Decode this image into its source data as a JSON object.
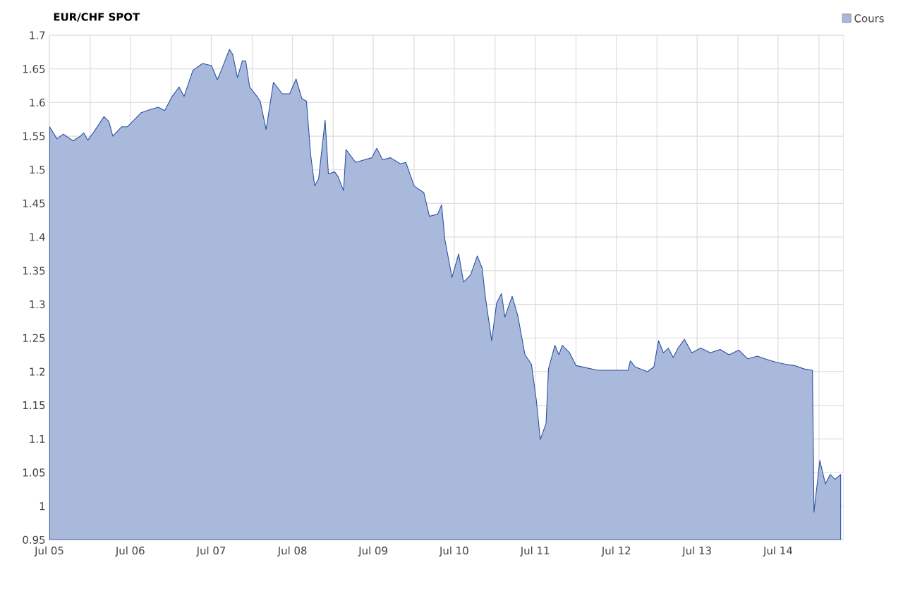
{
  "chart_data": {
    "type": "area",
    "title": "EUR/CHF SPOT",
    "x": [
      "2005-07-02",
      "2005-08-04",
      "2005-09-02",
      "2005-10-16",
      "2005-11-18",
      "2005-12-03",
      "2005-12-21",
      "2006-01-19",
      "2006-03-04",
      "2006-03-26",
      "2006-04-13",
      "2006-05-23",
      "2006-06-18",
      "2006-08-19",
      "2006-10-02",
      "2006-11-04",
      "2006-12-03",
      "2007-01-05",
      "2007-02-06",
      "2007-02-28",
      "2007-04-09",
      "2007-05-23",
      "2007-07-02",
      "2007-07-28",
      "2007-08-15",
      "2007-09-21",
      "2007-10-05",
      "2007-10-27",
      "2007-11-18",
      "2007-12-03",
      "2007-12-21",
      "2008-01-23",
      "2008-02-06",
      "2008-03-04",
      "2008-04-06",
      "2008-05-16",
      "2008-06-18",
      "2008-07-17",
      "2008-08-12",
      "2008-09-02",
      "2008-09-21",
      "2008-10-09",
      "2008-10-27",
      "2008-11-25",
      "2008-12-10",
      "2009-01-08",
      "2009-01-23",
      "2009-02-17",
      "2009-02-28",
      "2009-04-13",
      "2009-05-23",
      "2009-06-25",
      "2009-07-17",
      "2009-08-12",
      "2009-09-17",
      "2009-10-31",
      "2009-11-25",
      "2010-01-01",
      "2010-02-14",
      "2010-03-11",
      "2010-04-17",
      "2010-05-05",
      "2010-05-20",
      "2010-06-21",
      "2010-07-21",
      "2010-08-12",
      "2010-09-13",
      "2010-10-13",
      "2010-11-04",
      "2010-11-18",
      "2010-12-17",
      "2011-01-08",
      "2011-01-30",
      "2011-02-14",
      "2011-03-19",
      "2011-04-13",
      "2011-05-16",
      "2011-06-14",
      "2011-07-06",
      "2011-07-24",
      "2011-08-19",
      "2011-08-30",
      "2011-09-28",
      "2011-10-16",
      "2011-10-31",
      "2011-12-03",
      "2012-01-01",
      "2012-04-09",
      "2012-08-23",
      "2012-09-02",
      "2012-09-24",
      "2012-11-18",
      "2012-12-17",
      "2013-01-08",
      "2013-01-30",
      "2013-02-21",
      "2013-03-15",
      "2013-04-06",
      "2013-05-05",
      "2013-06-07",
      "2013-07-17",
      "2013-08-30",
      "2013-10-13",
      "2013-11-22",
      "2014-01-05",
      "2014-02-14",
      "2014-03-30",
      "2014-05-12",
      "2014-06-21",
      "2014-08-04",
      "2014-09-13",
      "2014-10-27",
      "2014-12-03",
      "2014-12-10",
      "2015-01-05",
      "2015-01-30",
      "2015-02-21",
      "2015-03-15",
      "2015-04-09"
    ],
    "series": [
      {
        "name": "Cours",
        "color": "#a9b9dc",
        "values": [
          1.564,
          1.546,
          1.553,
          1.543,
          1.55,
          1.555,
          1.544,
          1.557,
          1.579,
          1.572,
          1.55,
          1.564,
          1.564,
          1.585,
          1.59,
          1.593,
          1.588,
          1.609,
          1.623,
          1.609,
          1.648,
          1.658,
          1.655,
          1.634,
          1.648,
          1.679,
          1.672,
          1.637,
          1.662,
          1.662,
          1.623,
          1.609,
          1.602,
          1.56,
          1.63,
          1.613,
          1.613,
          1.635,
          1.606,
          1.602,
          1.522,
          1.476,
          1.487,
          1.574,
          1.494,
          1.497,
          1.49,
          1.469,
          1.53,
          1.511,
          1.515,
          1.518,
          1.532,
          1.515,
          1.518,
          1.509,
          1.511,
          1.476,
          1.466,
          1.431,
          1.434,
          1.448,
          1.396,
          1.34,
          1.375,
          1.333,
          1.344,
          1.372,
          1.354,
          1.312,
          1.246,
          1.302,
          1.316,
          1.281,
          1.312,
          1.284,
          1.225,
          1.211,
          1.158,
          1.099,
          1.123,
          1.204,
          1.239,
          1.225,
          1.239,
          1.228,
          1.209,
          1.202,
          1.202,
          1.216,
          1.207,
          1.2,
          1.207,
          1.246,
          1.228,
          1.235,
          1.221,
          1.235,
          1.248,
          1.228,
          1.235,
          1.228,
          1.233,
          1.225,
          1.232,
          1.219,
          1.223,
          1.218,
          1.214,
          1.211,
          1.209,
          1.204,
          1.202,
          0.991,
          1.068,
          1.033,
          1.047,
          1.04,
          1.047
        ]
      }
    ],
    "xlim": [
      "2005-07-01",
      "2015-04-21"
    ],
    "xticks": [
      {
        "value": "2005-07-01",
        "label": "Jul 05"
      },
      {
        "value": "2006-01-01",
        "label": null
      },
      {
        "value": "2006-07-01",
        "label": "Jul 06"
      },
      {
        "value": "2007-01-01",
        "label": null
      },
      {
        "value": "2007-07-01",
        "label": "Jul 07"
      },
      {
        "value": "2008-01-01",
        "label": null
      },
      {
        "value": "2008-07-01",
        "label": "Jul 08"
      },
      {
        "value": "2009-01-01",
        "label": null
      },
      {
        "value": "2009-07-01",
        "label": "Jul 09"
      },
      {
        "value": "2010-01-01",
        "label": null
      },
      {
        "value": "2010-07-01",
        "label": "Jul 10"
      },
      {
        "value": "2011-01-01",
        "label": null
      },
      {
        "value": "2011-07-01",
        "label": "Jul 11"
      },
      {
        "value": "2012-01-01",
        "label": null
      },
      {
        "value": "2012-07-01",
        "label": "Jul 12"
      },
      {
        "value": "2013-01-01",
        "label": null
      },
      {
        "value": "2013-07-01",
        "label": "Jul 13"
      },
      {
        "value": "2014-01-01",
        "label": null
      },
      {
        "value": "2014-07-01",
        "label": "Jul 14"
      },
      {
        "value": "2015-01-01",
        "label": null
      }
    ],
    "ylim": [
      0.95,
      1.7
    ],
    "yticks": [
      0.95,
      1,
      1.05,
      1.1,
      1.15,
      1.2,
      1.25,
      1.3,
      1.35,
      1.4,
      1.45,
      1.5,
      1.55,
      1.6,
      1.65,
      1.7
    ],
    "grid": true,
    "legend": "top right"
  }
}
